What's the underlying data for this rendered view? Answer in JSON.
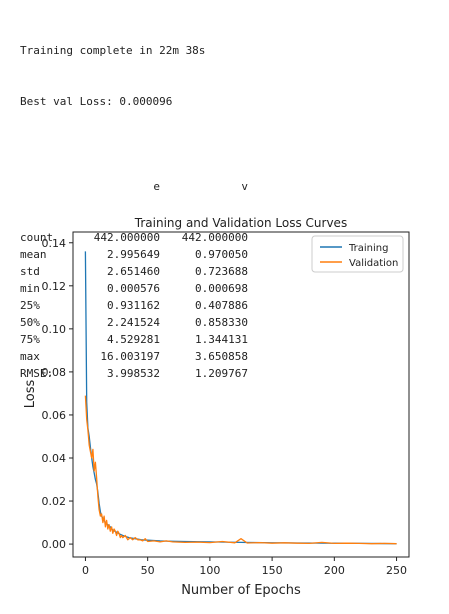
{
  "console": {
    "training_complete": "Training complete in 22m 38s",
    "best_val_loss": "Best val Loss: 0.000096",
    "table": {
      "columns": [
        "e",
        "v"
      ],
      "rows": [
        {
          "label": "count",
          "e": "442.000000",
          "v": "442.000000"
        },
        {
          "label": "mean",
          "e": "2.995649",
          "v": "0.970050"
        },
        {
          "label": "std",
          "e": "2.651460",
          "v": "0.723688"
        },
        {
          "label": "min",
          "e": "0.000576",
          "v": "0.000698"
        },
        {
          "label": "25%",
          "e": "0.931162",
          "v": "0.407886"
        },
        {
          "label": "50%",
          "e": "2.241524",
          "v": "0.858330"
        },
        {
          "label": "75%",
          "e": "4.529281",
          "v": "1.344131"
        },
        {
          "label": "max",
          "e": "16.003197",
          "v": "3.650858"
        },
        {
          "label": "RMSE:",
          "e": "3.998532",
          "v": "1.209767"
        }
      ]
    }
  },
  "chart_data": {
    "type": "line",
    "title": "Training and Validation Loss Curves",
    "xlabel": "Number of Epochs",
    "ylabel": "Loss",
    "xlim": [
      -10,
      260
    ],
    "ylim": [
      -0.006,
      0.145
    ],
    "xticks": [
      0,
      50,
      100,
      150,
      200,
      250
    ],
    "yticks": [
      0.0,
      0.02,
      0.04,
      0.06,
      0.08,
      0.1,
      0.12,
      0.14
    ],
    "ytick_labels": [
      "0.00",
      "0.02",
      "0.04",
      "0.06",
      "0.08",
      "0.10",
      "0.12",
      "0.14"
    ],
    "legend_position": "top-right",
    "colors": {
      "Training": "#1f77b4",
      "Validation": "#ff7f0e"
    },
    "series": [
      {
        "name": "Training",
        "x": [
          0,
          1,
          2,
          3,
          4,
          5,
          6,
          7,
          8,
          9,
          10,
          11,
          12,
          13,
          14,
          15,
          16,
          18,
          20,
          22,
          25,
          28,
          30,
          35,
          40,
          45,
          50,
          60,
          70,
          80,
          100,
          125,
          150,
          175,
          200,
          225,
          250
        ],
        "y": [
          0.136,
          0.066,
          0.054,
          0.05,
          0.045,
          0.04,
          0.036,
          0.033,
          0.03,
          0.028,
          0.024,
          0.019,
          0.015,
          0.013,
          0.012,
          0.011,
          0.01,
          0.009,
          0.008,
          0.0065,
          0.0055,
          0.0045,
          0.004,
          0.003,
          0.0025,
          0.002,
          0.0018,
          0.0015,
          0.0013,
          0.0012,
          0.001,
          0.0008,
          0.0006,
          0.0005,
          0.0004,
          0.0003,
          0.0002
        ]
      },
      {
        "name": "Validation",
        "x": [
          0,
          1,
          2,
          3,
          4,
          5,
          6,
          7,
          8,
          9,
          10,
          11,
          12,
          13,
          14,
          15,
          16,
          17,
          18,
          19,
          20,
          21,
          22,
          23,
          24,
          25,
          26,
          27,
          28,
          29,
          30,
          32,
          34,
          36,
          38,
          40,
          42,
          44,
          46,
          48,
          50,
          55,
          60,
          65,
          70,
          80,
          90,
          100,
          110,
          120,
          125,
          130,
          140,
          150,
          160,
          170,
          180,
          190,
          200,
          210,
          220,
          230,
          240,
          250
        ],
        "y": [
          0.069,
          0.058,
          0.053,
          0.046,
          0.043,
          0.04,
          0.044,
          0.034,
          0.038,
          0.031,
          0.022,
          0.016,
          0.013,
          0.014,
          0.01,
          0.013,
          0.008,
          0.011,
          0.007,
          0.009,
          0.006,
          0.008,
          0.005,
          0.007,
          0.006,
          0.004,
          0.006,
          0.005,
          0.003,
          0.004,
          0.003,
          0.004,
          0.002,
          0.003,
          0.002,
          0.003,
          0.002,
          0.002,
          0.0015,
          0.0025,
          0.0012,
          0.0015,
          0.001,
          0.0015,
          0.001,
          0.0008,
          0.0009,
          0.0007,
          0.0012,
          0.0006,
          0.0025,
          0.0005,
          0.0007,
          0.0004,
          0.0006,
          0.0004,
          0.0003,
          0.0008,
          0.0003,
          0.0004,
          0.0003,
          0.0002,
          0.0003,
          0.0002
        ]
      }
    ]
  }
}
